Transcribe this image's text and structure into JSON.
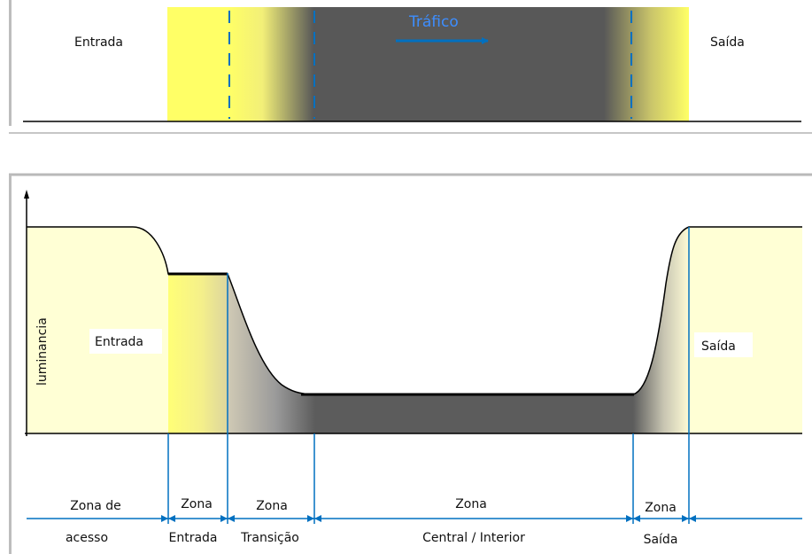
{
  "top": {
    "entrance_label": "Entrada",
    "exit_label": "Saída",
    "traffic_label": "Tráfico"
  },
  "graph": {
    "y_axis_label": "luminancia",
    "entrance_label": "Entrada",
    "exit_label": "Saída"
  },
  "zones": {
    "access_line1": "Zona de",
    "access_line2": "acesso",
    "entrance_line1": "Zona",
    "entrance_line2": "Entrada",
    "transition_line1": "Zona",
    "transition_line2": "Transição",
    "central_line1": "Zona",
    "central_line2": "Central / Interior",
    "exit_line1": "Zona",
    "exit_line2": "Saída"
  },
  "colors": {
    "yellow": "#ffff66",
    "light_yellow": "#ffffd5",
    "tunnel_gray": "#595959",
    "accent_blue": "#0070c0"
  }
}
